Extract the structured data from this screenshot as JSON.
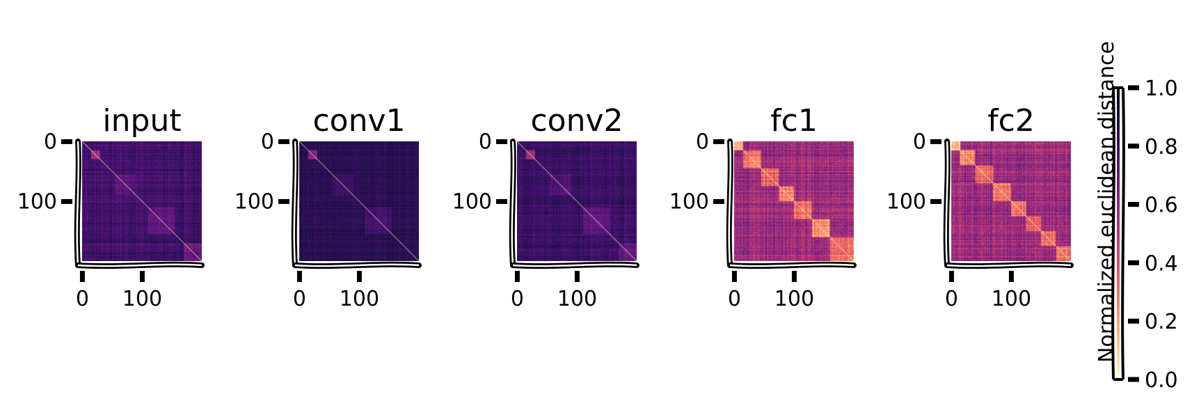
{
  "chart_data": {
    "type": "heatmap",
    "colormap": "magma_r",
    "colorbar": {
      "label": "Normalized.euclidean.distance",
      "range": [
        0.0,
        1.0
      ],
      "ticks": [
        "0.0",
        "0.2",
        "0.4",
        "0.6",
        "0.8",
        "1.0"
      ]
    },
    "matrix_size": 200,
    "panels": [
      {
        "title": "input",
        "xticks": [
          "0",
          "100"
        ],
        "yticks": [
          "0",
          "100"
        ],
        "background_level": 0.78,
        "diagonal_level": 0.05,
        "noise": 0.1,
        "blocks": [
          {
            "start": 15,
            "end": 30,
            "level": 0.55
          },
          {
            "start": 55,
            "end": 90,
            "level": 0.72
          },
          {
            "start": 110,
            "end": 155,
            "level": 0.7
          },
          {
            "start": 170,
            "end": 200,
            "level": 0.68
          }
        ]
      },
      {
        "title": "conv1",
        "xticks": [
          "0",
          "100"
        ],
        "yticks": [
          "0",
          "100"
        ],
        "background_level": 0.84,
        "diagonal_level": 0.05,
        "noise": 0.07,
        "blocks": [
          {
            "start": 15,
            "end": 30,
            "level": 0.62
          },
          {
            "start": 55,
            "end": 90,
            "level": 0.8
          },
          {
            "start": 110,
            "end": 155,
            "level": 0.78
          }
        ]
      },
      {
        "title": "conv2",
        "xticks": [
          "0",
          "100"
        ],
        "yticks": [
          "0",
          "100"
        ],
        "background_level": 0.8,
        "diagonal_level": 0.05,
        "noise": 0.09,
        "blocks": [
          {
            "start": 15,
            "end": 30,
            "level": 0.55
          },
          {
            "start": 55,
            "end": 90,
            "level": 0.74
          },
          {
            "start": 110,
            "end": 155,
            "level": 0.72
          },
          {
            "start": 170,
            "end": 200,
            "level": 0.7
          }
        ]
      },
      {
        "title": "fc1",
        "xticks": [
          "0",
          "100"
        ],
        "yticks": [
          "0",
          "100"
        ],
        "background_level": 0.55,
        "diagonal_level": 0.05,
        "noise": 0.17,
        "blocks": [
          {
            "start": 0,
            "end": 15,
            "level": 0.15
          },
          {
            "start": 15,
            "end": 45,
            "level": 0.28
          },
          {
            "start": 45,
            "end": 75,
            "level": 0.3
          },
          {
            "start": 75,
            "end": 100,
            "level": 0.25
          },
          {
            "start": 100,
            "end": 130,
            "level": 0.32
          },
          {
            "start": 130,
            "end": 160,
            "level": 0.2
          },
          {
            "start": 160,
            "end": 200,
            "level": 0.3
          }
        ]
      },
      {
        "title": "fc2",
        "xticks": [
          "0",
          "100"
        ],
        "yticks": [
          "0",
          "100"
        ],
        "background_level": 0.55,
        "diagonal_level": 0.05,
        "noise": 0.18,
        "blocks": [
          {
            "start": 0,
            "end": 15,
            "level": 0.15
          },
          {
            "start": 15,
            "end": 40,
            "level": 0.22
          },
          {
            "start": 40,
            "end": 70,
            "level": 0.3
          },
          {
            "start": 70,
            "end": 100,
            "level": 0.28
          },
          {
            "start": 100,
            "end": 125,
            "level": 0.25
          },
          {
            "start": 125,
            "end": 150,
            "level": 0.35
          },
          {
            "start": 150,
            "end": 175,
            "level": 0.3
          },
          {
            "start": 175,
            "end": 200,
            "level": 0.28
          }
        ]
      }
    ]
  }
}
